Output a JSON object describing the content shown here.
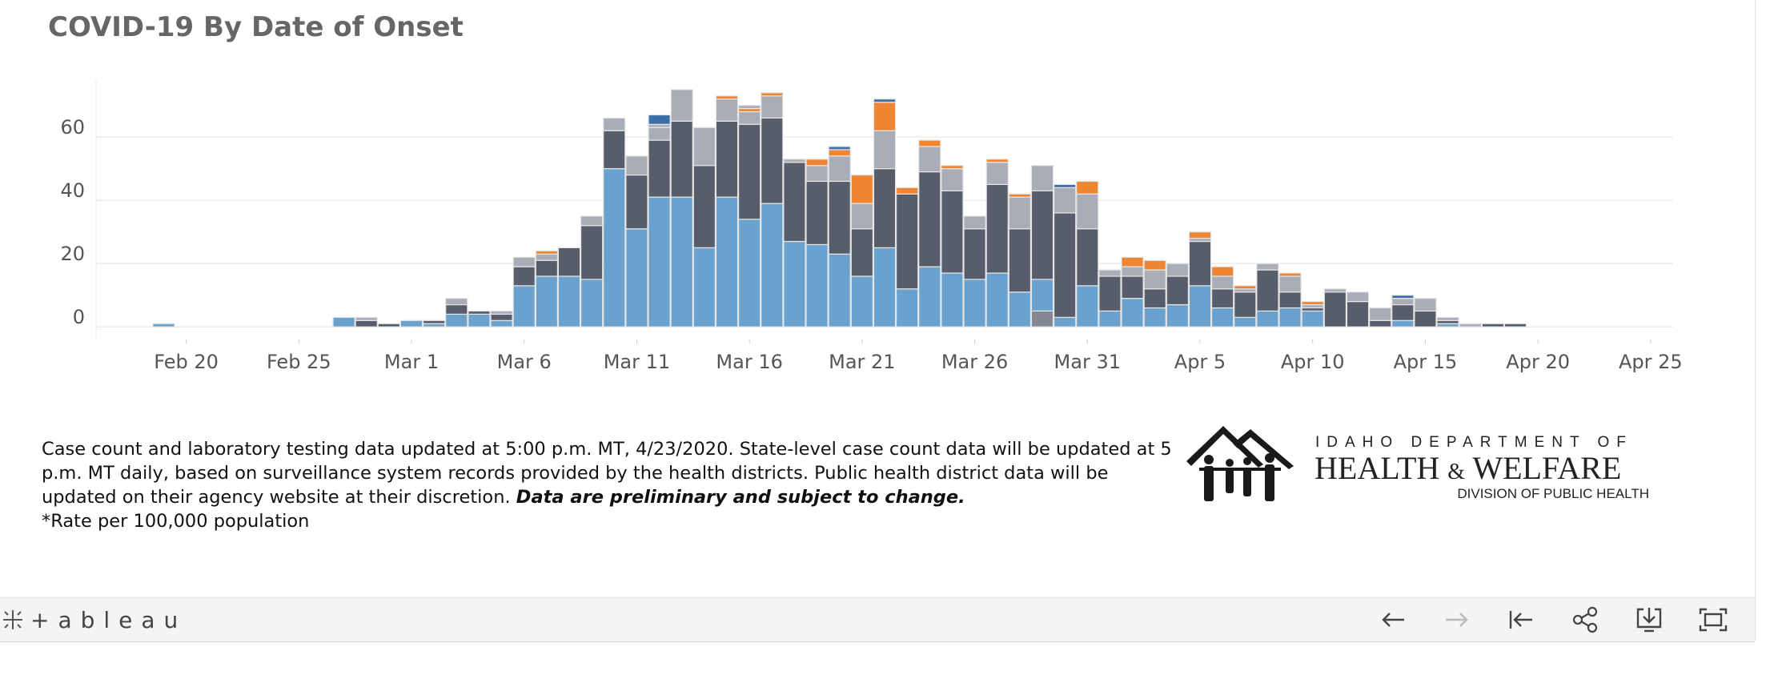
{
  "title": "COVID-19 By Date of Onset",
  "note": {
    "text": "Case count and laboratory testing data updated at 5:00 p.m. MT, 4/23/2020. State-level case count data will be updated at 5 p.m. MT daily, based on surveillance system records provided by the health districts. Public health district data will be updated on their agency website at their discretion.",
    "emphasis": "Data are preliminary and subject to change.",
    "footnote": "*Rate per 100,000 population"
  },
  "logo": {
    "line1": "IDAHO DEPARTMENT OF",
    "line2a": "HEALTH",
    "amp": "&",
    "line2b": "WELFARE",
    "line3": "DIVISION OF PUBLIC HEALTH"
  },
  "toolbar": {
    "brand": "+ableau",
    "buttons": [
      "undo-icon",
      "redo-icon",
      "revert-icon",
      "share-icon",
      "download-icon",
      "fullscreen-icon"
    ]
  },
  "colors": {
    "light_blue": "#6aa2cf",
    "dark_slate": "#575d6b",
    "light_gray": "#a8adb8",
    "orange": "#ee8533",
    "mid_gray": "#828793",
    "navy_blue": "#3d6fa6",
    "outline": "#e6e6e6"
  },
  "chart_data": {
    "type": "bar",
    "stacked": true,
    "x_axis": "date",
    "x_start": "2020-02-19",
    "xlim": [
      "2020-02-16",
      "2020-04-26"
    ],
    "ylim": [
      -4,
      78
    ],
    "y_ticks": [
      0,
      20,
      40,
      60
    ],
    "x_ticks": [
      {
        "date": "2020-02-20",
        "label": "Feb 20"
      },
      {
        "date": "2020-02-25",
        "label": "Feb 25"
      },
      {
        "date": "2020-03-01",
        "label": "Mar 1"
      },
      {
        "date": "2020-03-06",
        "label": "Mar 6"
      },
      {
        "date": "2020-03-11",
        "label": "Mar 11"
      },
      {
        "date": "2020-03-16",
        "label": "Mar 16"
      },
      {
        "date": "2020-03-21",
        "label": "Mar 21"
      },
      {
        "date": "2020-03-26",
        "label": "Mar 26"
      },
      {
        "date": "2020-03-31",
        "label": "Mar 31"
      },
      {
        "date": "2020-04-05",
        "label": "Apr 5"
      },
      {
        "date": "2020-04-10",
        "label": "Apr 10"
      },
      {
        "date": "2020-04-15",
        "label": "Apr 15"
      },
      {
        "date": "2020-04-20",
        "label": "Apr 20"
      },
      {
        "date": "2020-04-25",
        "label": "Apr 25"
      }
    ],
    "grid": true,
    "legend": "none",
    "series_colors": [
      "#828793",
      "#6aa2cf",
      "#575d6b",
      "#a8adb8",
      "#ee8533",
      "#3d6fa6"
    ],
    "dates": [
      "2020-02-22",
      "2020-02-23",
      "2020-02-24",
      "2020-02-25",
      "2020-02-26",
      "2020-02-27",
      "2020-02-28",
      "2020-02-29",
      "2020-03-01",
      "2020-03-02",
      "2020-03-03",
      "2020-03-04",
      "2020-03-05",
      "2020-03-06",
      "2020-03-07",
      "2020-03-08",
      "2020-03-09",
      "2020-03-10",
      "2020-03-11",
      "2020-03-12",
      "2020-03-13",
      "2020-03-14",
      "2020-03-15",
      "2020-03-16",
      "2020-03-17",
      "2020-03-18",
      "2020-03-19",
      "2020-03-20",
      "2020-03-21",
      "2020-03-22",
      "2020-03-23",
      "2020-03-24",
      "2020-03-25",
      "2020-03-26",
      "2020-03-27",
      "2020-03-28",
      "2020-03-29",
      "2020-03-30",
      "2020-03-31",
      "2020-04-01",
      "2020-04-02",
      "2020-04-03",
      "2020-04-04",
      "2020-04-05",
      "2020-04-06",
      "2020-04-07",
      "2020-04-08",
      "2020-04-09",
      "2020-04-10",
      "2020-04-11",
      "2020-04-12",
      "2020-04-13",
      "2020-04-14",
      "2020-04-15",
      "2020-04-16",
      "2020-04-17",
      "2020-04-18",
      "2020-04-19",
      "2020-04-20",
      "2020-04-21",
      "2020-04-22",
      "2020-04-23"
    ],
    "stacks": [
      [
        [
          1,
          1
        ]
      ],
      [],
      [],
      [],
      [],
      [],
      [],
      [],
      [
        [
          1,
          3
        ]
      ],
      [
        [
          2,
          2
        ],
        [
          3,
          1
        ]
      ],
      [
        [
          2,
          1
        ]
      ],
      [
        [
          1,
          2
        ]
      ],
      [
        [
          1,
          1
        ],
        [
          2,
          1
        ]
      ],
      [
        [
          1,
          4
        ],
        [
          2,
          3
        ],
        [
          3,
          2
        ]
      ],
      [
        [
          1,
          4
        ],
        [
          2,
          1
        ]
      ],
      [
        [
          1,
          2
        ],
        [
          2,
          2
        ],
        [
          3,
          1
        ]
      ],
      [
        [
          1,
          13
        ],
        [
          2,
          6
        ],
        [
          3,
          3
        ]
      ],
      [
        [
          1,
          16
        ],
        [
          2,
          5
        ],
        [
          3,
          2
        ],
        [
          4,
          1
        ]
      ],
      [
        [
          1,
          16
        ],
        [
          2,
          9
        ]
      ],
      [
        [
          1,
          15
        ],
        [
          2,
          17
        ],
        [
          3,
          3
        ]
      ],
      [
        [
          1,
          50
        ],
        [
          2,
          12
        ],
        [
          3,
          4
        ]
      ],
      [
        [
          1,
          31
        ],
        [
          2,
          17
        ],
        [
          3,
          6
        ]
      ],
      [
        [
          1,
          41
        ],
        [
          2,
          18
        ],
        [
          3,
          4
        ],
        [
          3,
          1
        ],
        [
          5,
          3
        ]
      ],
      [
        [
          1,
          41
        ],
        [
          2,
          24
        ],
        [
          3,
          10
        ]
      ],
      [
        [
          1,
          25
        ],
        [
          2,
          26
        ],
        [
          3,
          12
        ]
      ],
      [
        [
          1,
          41
        ],
        [
          2,
          24
        ],
        [
          3,
          7
        ],
        [
          4,
          1
        ]
      ],
      [
        [
          1,
          34
        ],
        [
          2,
          30
        ],
        [
          3,
          4
        ],
        [
          4,
          1
        ],
        [
          3,
          1
        ]
      ],
      [
        [
          1,
          39
        ],
        [
          2,
          27
        ],
        [
          3,
          7
        ],
        [
          4,
          1
        ]
      ],
      [
        [
          1,
          27
        ],
        [
          2,
          25
        ],
        [
          3,
          1
        ]
      ],
      [
        [
          1,
          26
        ],
        [
          2,
          20
        ],
        [
          3,
          5
        ],
        [
          4,
          2
        ]
      ],
      [
        [
          1,
          23
        ],
        [
          2,
          23
        ],
        [
          3,
          8
        ],
        [
          4,
          2
        ],
        [
          5,
          1
        ]
      ],
      [
        [
          1,
          16
        ],
        [
          2,
          15
        ],
        [
          3,
          8
        ],
        [
          4,
          9
        ]
      ],
      [
        [
          1,
          25
        ],
        [
          2,
          25
        ],
        [
          3,
          12
        ],
        [
          4,
          9
        ],
        [
          5,
          1
        ]
      ],
      [
        [
          1,
          12
        ],
        [
          2,
          30
        ],
        [
          4,
          2
        ]
      ],
      [
        [
          1,
          19
        ],
        [
          2,
          30
        ],
        [
          3,
          8
        ],
        [
          4,
          2
        ]
      ],
      [
        [
          1,
          17
        ],
        [
          2,
          26
        ],
        [
          3,
          7
        ],
        [
          4,
          1
        ]
      ],
      [
        [
          1,
          15
        ],
        [
          2,
          16
        ],
        [
          3,
          4
        ]
      ],
      [
        [
          1,
          17
        ],
        [
          2,
          28
        ],
        [
          3,
          7
        ],
        [
          4,
          1
        ]
      ],
      [
        [
          1,
          11
        ],
        [
          2,
          20
        ],
        [
          3,
          10
        ],
        [
          4,
          1
        ]
      ],
      [
        [
          0,
          5
        ],
        [
          1,
          10
        ],
        [
          2,
          28
        ],
        [
          3,
          8
        ]
      ],
      [
        [
          1,
          3
        ],
        [
          2,
          33
        ],
        [
          3,
          8
        ],
        [
          5,
          1
        ]
      ],
      [
        [
          1,
          13
        ],
        [
          2,
          18
        ],
        [
          3,
          11
        ],
        [
          4,
          4
        ]
      ],
      [
        [
          1,
          5
        ],
        [
          2,
          11
        ],
        [
          3,
          2
        ]
      ],
      [
        [
          1,
          9
        ],
        [
          2,
          7
        ],
        [
          3,
          3
        ],
        [
          4,
          3
        ]
      ],
      [
        [
          1,
          6
        ],
        [
          2,
          6
        ],
        [
          3,
          6
        ],
        [
          4,
          3
        ]
      ],
      [
        [
          1,
          7
        ],
        [
          2,
          9
        ],
        [
          3,
          4
        ]
      ],
      [
        [
          1,
          13
        ],
        [
          2,
          14
        ],
        [
          3,
          1
        ],
        [
          4,
          2
        ]
      ],
      [
        [
          1,
          6
        ],
        [
          2,
          6
        ],
        [
          3,
          4
        ],
        [
          4,
          3
        ]
      ],
      [
        [
          1,
          3
        ],
        [
          2,
          8
        ],
        [
          3,
          1
        ],
        [
          4,
          1
        ]
      ],
      [
        [
          1,
          5
        ],
        [
          2,
          13
        ],
        [
          3,
          2
        ]
      ],
      [
        [
          1,
          6
        ],
        [
          2,
          5
        ],
        [
          3,
          5
        ],
        [
          4,
          1
        ]
      ],
      [
        [
          1,
          5
        ],
        [
          2,
          1
        ],
        [
          3,
          1
        ],
        [
          4,
          1
        ]
      ],
      [
        [
          2,
          11
        ],
        [
          3,
          1
        ]
      ],
      [
        [
          2,
          8
        ],
        [
          3,
          3
        ]
      ],
      [
        [
          2,
          2
        ],
        [
          3,
          4
        ]
      ],
      [
        [
          1,
          2
        ],
        [
          2,
          5
        ],
        [
          3,
          2
        ],
        [
          5,
          1
        ]
      ],
      [
        [
          2,
          5
        ],
        [
          3,
          4
        ]
      ],
      [
        [
          1,
          1
        ],
        [
          2,
          1
        ],
        [
          3,
          1
        ]
      ],
      [
        [
          3,
          1
        ]
      ],
      [
        [
          2,
          1
        ]
      ],
      [
        [
          2,
          1
        ]
      ]
    ]
  }
}
